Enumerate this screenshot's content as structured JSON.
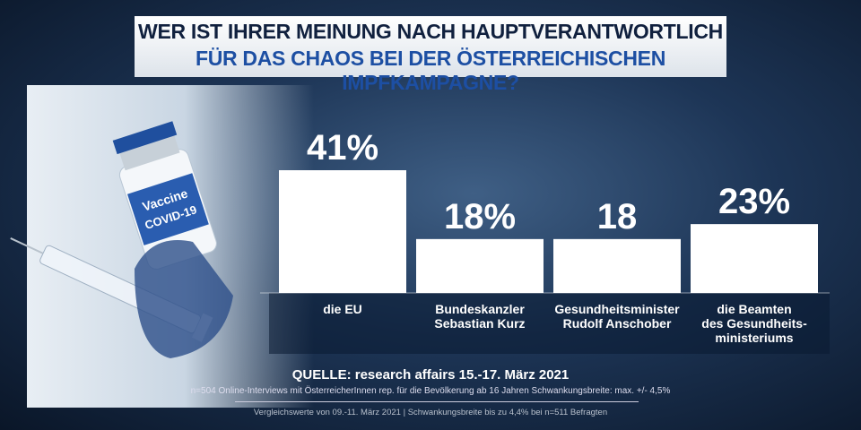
{
  "chart_data": {
    "type": "bar",
    "title": "WER IST IHRER MEINUNG NACH HAUPTVERANTWORTLICH",
    "subtitle": "FÜR DAS CHAOS BEI DER ÖSTERREICHISCHEN IMPFKAMPAGNE?",
    "categories": [
      "die EU",
      "Bundeskanzler\nSebastian Kurz",
      "Gesundheitsminister\nRudolf Anschober",
      "die Beamten\ndes Gesundheits-\nministeriums"
    ],
    "values": [
      41,
      18,
      18,
      23
    ],
    "value_labels": [
      "41%",
      "18%",
      "18",
      "23%"
    ],
    "color": "#ffffff",
    "source": "QUELLE: research affairs 15.-17. März 2021",
    "methodology": "n=504 Online-Interviews mit ÖsterreicherInnen rep. für die Bevölkerung ab 16 Jahren  Schwankungsbreite: max. +/- 4,5%",
    "comparison": "Vergleichswerte von 09.-11. März 2021",
    "comparison_note": "Schwankungsbreite bis zu 4,4% bei n=511 Befragten"
  }
}
